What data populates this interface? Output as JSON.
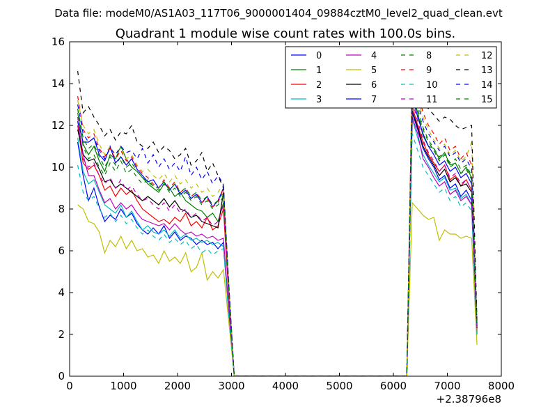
{
  "suptitle": "Data file: modeM0/AS1A03_117T06_9000001404_09884cztM0_level2_quad_clean.evt",
  "chart_data": {
    "type": "line",
    "title": "Quadrant 1 module wise count rates with 100.0s bins.",
    "xlabel": "",
    "ylabel": "",
    "x_offset_label": "+2.38796e8",
    "xlim": [
      0,
      8000
    ],
    "ylim": [
      0,
      16
    ],
    "xticks": [
      0,
      1000,
      2000,
      3000,
      4000,
      5000,
      6000,
      7000,
      8000
    ],
    "yticks": [
      0,
      2,
      4,
      6,
      8,
      10,
      12,
      14,
      16
    ],
    "grid": false,
    "legend_position": "top-right",
    "legend_columns": 4,
    "segment_x": {
      "a": [
        150,
        250,
        350,
        450,
        550,
        650,
        750,
        850,
        950,
        1050,
        1150,
        1250,
        1350,
        1450,
        1550,
        1650,
        1750,
        1850,
        1950,
        2050,
        2150,
        2250,
        2350,
        2450,
        2550,
        2650,
        2750,
        2850,
        2950,
        3050
      ],
      "gap": [
        3050,
        4000,
        5000,
        6000,
        6250
      ],
      "b": [
        6250,
        6350,
        6450,
        6550,
        6650,
        6750,
        6850,
        6950,
        7050,
        7150,
        7250,
        7350,
        7450,
        7550
      ]
    },
    "series": [
      {
        "name": "0",
        "color": "#0000ff",
        "dash": "solid",
        "a": [
          11.2,
          9.6,
          8.4,
          9.0,
          8.1,
          7.4,
          7.7,
          7.5,
          8.0,
          7.6,
          7.8,
          7.3,
          7.0,
          6.8,
          7.1,
          6.8,
          7.2,
          6.6,
          6.9,
          6.5,
          6.7,
          6.6,
          6.3,
          6.5,
          6.3,
          6.4,
          6.1,
          6.4,
          3.2,
          0
        ],
        "b": [
          0.2,
          12.6,
          11.8,
          10.9,
          10.4,
          10.0,
          9.4,
          9.6,
          9.0,
          9.2,
          8.6,
          8.9,
          8.4,
          2.1
        ]
      },
      {
        "name": "1",
        "color": "#008000",
        "dash": "solid",
        "a": [
          12.6,
          11.1,
          10.6,
          11.0,
          10.3,
          9.8,
          10.6,
          10.4,
          11.0,
          10.4,
          10.0,
          9.8,
          9.5,
          9.2,
          9.0,
          8.8,
          9.2,
          9.0,
          8.6,
          8.8,
          8.4,
          8.2,
          8.0,
          7.9,
          7.6,
          7.8,
          7.4,
          8.3,
          4.0,
          0
        ],
        "b": [
          0.3,
          13.6,
          12.6,
          11.5,
          11.0,
          10.9,
          10.4,
          10.7,
          10.1,
          10.2,
          9.7,
          10.0,
          9.5,
          2.4
        ]
      },
      {
        "name": "2",
        "color": "#ff0000",
        "dash": "solid",
        "a": [
          12.0,
          10.2,
          9.9,
          10.1,
          9.6,
          8.9,
          9.1,
          8.6,
          9.0,
          8.7,
          8.9,
          8.4,
          8.0,
          7.8,
          7.6,
          7.4,
          7.5,
          7.3,
          7.6,
          7.4,
          7.8,
          7.2,
          7.4,
          7.1,
          7.6,
          7.0,
          7.2,
          8.0,
          3.8,
          0
        ],
        "b": [
          0.2,
          12.9,
          12.0,
          11.2,
          10.6,
          10.2,
          9.8,
          10.1,
          9.4,
          9.6,
          9.1,
          9.4,
          8.9,
          2.3
        ]
      },
      {
        "name": "3",
        "color": "#00bfbf",
        "dash": "solid",
        "a": [
          11.4,
          9.8,
          9.2,
          9.4,
          8.8,
          8.2,
          8.0,
          7.8,
          8.2,
          7.6,
          7.9,
          7.4,
          7.0,
          7.2,
          6.9,
          6.8,
          7.0,
          6.7,
          7.0,
          6.6,
          6.8,
          6.5,
          6.6,
          6.4,
          6.5,
          6.3,
          6.4,
          6.2,
          3.0,
          0
        ],
        "b": [
          0.2,
          12.3,
          11.4,
          10.6,
          10.1,
          9.7,
          9.3,
          9.5,
          8.9,
          9.0,
          8.5,
          8.7,
          8.2,
          2.0
        ]
      },
      {
        "name": "4",
        "color": "#bf00bf",
        "dash": "solid",
        "a": [
          12.2,
          10.6,
          9.6,
          9.6,
          8.9,
          8.3,
          8.5,
          8.0,
          8.3,
          8.0,
          8.2,
          7.8,
          7.5,
          7.4,
          7.3,
          7.2,
          7.3,
          7.0,
          7.3,
          7.0,
          6.8,
          6.9,
          6.7,
          6.8,
          6.6,
          6.7,
          6.5,
          6.6,
          3.2,
          0
        ],
        "b": [
          0.2,
          12.4,
          11.6,
          10.4,
          10.0,
          9.5,
          9.1,
          9.3,
          8.7,
          8.9,
          8.4,
          8.6,
          8.2,
          2.0
        ]
      },
      {
        "name": "5",
        "color": "#bfbf00",
        "dash": "solid",
        "a": [
          8.2,
          8.0,
          7.4,
          7.3,
          6.9,
          5.9,
          6.5,
          6.2,
          6.7,
          6.1,
          6.5,
          6.0,
          6.1,
          5.7,
          5.8,
          5.4,
          6.0,
          5.5,
          5.7,
          5.4,
          5.9,
          5.0,
          5.2,
          5.9,
          4.6,
          5.0,
          4.7,
          5.1,
          2.6,
          0
        ],
        "b": [
          0.1,
          8.3,
          8.0,
          7.7,
          7.5,
          7.6,
          6.5,
          7.0,
          6.8,
          6.8,
          6.6,
          6.7,
          6.6,
          1.5
        ]
      },
      {
        "name": "6",
        "color": "#000000",
        "dash": "solid",
        "a": [
          11.8,
          10.6,
          10.3,
          10.4,
          9.9,
          9.3,
          9.4,
          9.0,
          9.2,
          9.0,
          8.8,
          8.6,
          8.4,
          8.6,
          8.4,
          8.2,
          8.5,
          8.1,
          8.4,
          8.0,
          7.9,
          7.6,
          7.7,
          7.4,
          7.3,
          7.2,
          7.1,
          8.8,
          4.1,
          0
        ],
        "b": [
          0.2,
          12.7,
          11.9,
          11.0,
          10.5,
          10.1,
          9.6,
          9.9,
          9.3,
          9.5,
          9.1,
          9.2,
          8.8,
          2.3
        ]
      },
      {
        "name": "7",
        "color": "#0000ff",
        "dash": "solid",
        "a": [
          12.2,
          11.2,
          11.2,
          11.4,
          10.6,
          10.3,
          11.0,
          10.2,
          10.5,
          10.1,
          10.4,
          9.9,
          9.6,
          9.3,
          9.4,
          9.0,
          9.3,
          8.9,
          9.2,
          8.7,
          8.9,
          8.5,
          8.7,
          8.3,
          8.6,
          8.1,
          8.4,
          9.0,
          4.2,
          0
        ],
        "b": [
          0.3,
          13.4,
          12.4,
          11.6,
          11.0,
          10.6,
          10.1,
          10.3,
          9.8,
          10.0,
          9.5,
          9.7,
          9.2,
          2.4
        ]
      },
      {
        "name": "8",
        "color": "#008000",
        "dash": "dashed",
        "a": [
          12.8,
          11.0,
          10.4,
          10.6,
          10.0,
          9.6,
          10.2,
          9.8,
          10.3,
          9.7,
          9.9,
          9.5,
          9.2,
          9.4,
          9.1,
          8.9,
          9.2,
          8.8,
          9.0,
          8.6,
          8.8,
          8.4,
          8.6,
          8.2,
          8.4,
          8.0,
          8.2,
          8.6,
          4.0,
          0
        ],
        "b": [
          0.3,
          13.8,
          12.8,
          11.9,
          11.3,
          10.9,
          10.5,
          10.7,
          10.2,
          10.4,
          9.9,
          10.1,
          9.6,
          2.4
        ]
      },
      {
        "name": "9",
        "color": "#ff0000",
        "dash": "dashed",
        "a": [
          13.4,
          11.8,
          11.4,
          11.6,
          10.9,
          10.5,
          10.9,
          10.4,
          10.8,
          10.3,
          10.5,
          10.0,
          9.7,
          9.5,
          9.2,
          9.0,
          9.4,
          9.0,
          9.3,
          8.8,
          9.0,
          8.6,
          8.8,
          8.3,
          8.5,
          8.1,
          8.3,
          9.0,
          4.2,
          0
        ],
        "b": [
          0.3,
          14.8,
          13.6,
          12.6,
          12.0,
          11.6,
          11.1,
          11.4,
          10.8,
          11.0,
          10.4,
          10.7,
          10.1,
          2.5
        ]
      },
      {
        "name": "10",
        "color": "#00bfbf",
        "dash": "dashed",
        "a": [
          10.1,
          8.8,
          8.4,
          8.6,
          8.0,
          7.6,
          7.8,
          7.4,
          7.7,
          7.3,
          7.5,
          7.1,
          6.8,
          7.0,
          6.7,
          6.5,
          6.8,
          6.4,
          6.6,
          6.3,
          6.5,
          6.1,
          6.3,
          5.9,
          6.1,
          5.8,
          6.0,
          6.1,
          2.9,
          0
        ],
        "b": [
          0.2,
          11.6,
          10.8,
          10.0,
          9.6,
          9.2,
          8.8,
          9.0,
          8.4,
          8.6,
          8.1,
          8.3,
          7.9,
          1.9
        ]
      },
      {
        "name": "11",
        "color": "#bf00bf",
        "dash": "dashed",
        "a": [
          12.4,
          10.4,
          10.0,
          10.2,
          9.6,
          9.2,
          9.5,
          9.0,
          9.4,
          8.9,
          9.1,
          8.7,
          8.4,
          8.5,
          8.2,
          8.0,
          8.3,
          7.9,
          8.2,
          7.8,
          8.0,
          7.6,
          7.8,
          7.4,
          7.6,
          7.2,
          7.4,
          8.2,
          3.9,
          0
        ],
        "b": [
          0.2,
          13.2,
          12.2,
          11.3,
          10.7,
          10.3,
          9.8,
          10.1,
          9.5,
          9.7,
          9.2,
          9.4,
          8.9,
          2.2
        ]
      },
      {
        "name": "12",
        "color": "#bfbf00",
        "dash": "dashed",
        "a": [
          13.2,
          12.0,
          11.6,
          11.8,
          11.1,
          10.6,
          11.0,
          10.6,
          10.9,
          10.4,
          10.6,
          10.1,
          9.8,
          9.9,
          9.6,
          9.4,
          9.7,
          9.3,
          9.6,
          9.2,
          9.4,
          9.0,
          9.2,
          8.8,
          9.0,
          8.6,
          8.8,
          9.2,
          4.4,
          0
        ],
        "b": [
          0.3,
          14.2,
          13.2,
          12.4,
          11.8,
          11.3,
          10.9,
          11.1,
          10.6,
          10.8,
          10.3,
          10.5,
          11.2,
          2.5
        ]
      },
      {
        "name": "13",
        "color": "#000000",
        "dash": "dashed",
        "a": [
          14.6,
          12.6,
          12.9,
          12.4,
          12.0,
          11.5,
          11.8,
          11.3,
          11.7,
          11.6,
          12.0,
          11.2,
          11.0,
          10.9,
          11.2,
          10.7,
          11.0,
          10.8,
          10.4,
          10.6,
          10.9,
          10.1,
          10.3,
          10.7,
          9.8,
          10.2,
          9.6,
          9.0,
          4.4,
          0
        ],
        "b": [
          0.3,
          14.5,
          13.8,
          13.0,
          12.8,
          12.5,
          12.2,
          12.4,
          12.3,
          12.0,
          11.8,
          11.9,
          12.0,
          2.6
        ]
      },
      {
        "name": "14",
        "color": "#0000ff",
        "dash": "dashed",
        "a": [
          13.0,
          11.6,
          11.2,
          11.4,
          10.8,
          10.4,
          10.9,
          10.6,
          11.0,
          10.7,
          10.8,
          10.4,
          10.9,
          10.2,
          10.6,
          10.0,
          10.4,
          9.9,
          10.2,
          9.8,
          10.5,
          9.6,
          10.0,
          9.4,
          9.8,
          9.2,
          9.6,
          9.2,
          4.4,
          0
        ],
        "b": [
          0.3,
          14.0,
          13.0,
          12.2,
          11.6,
          11.2,
          10.8,
          11.0,
          10.5,
          10.7,
          10.2,
          10.4,
          9.9,
          2.4
        ]
      },
      {
        "name": "15",
        "color": "#008000",
        "dash": "dashed",
        "a": [
          12.8,
          11.4,
          10.9,
          11.1,
          10.5,
          10.0,
          10.5,
          10.1,
          10.5,
          10.0,
          10.2,
          9.8,
          9.5,
          9.3,
          9.1,
          9.0,
          9.3,
          8.9,
          9.2,
          8.8,
          9.0,
          8.6,
          8.8,
          8.4,
          8.6,
          8.2,
          8.4,
          8.8,
          4.2,
          0
        ],
        "b": [
          0.3,
          13.6,
          12.6,
          11.8,
          11.2,
          10.8,
          10.3,
          10.6,
          10.0,
          10.2,
          9.7,
          9.9,
          9.4,
          2.4
        ]
      }
    ]
  }
}
